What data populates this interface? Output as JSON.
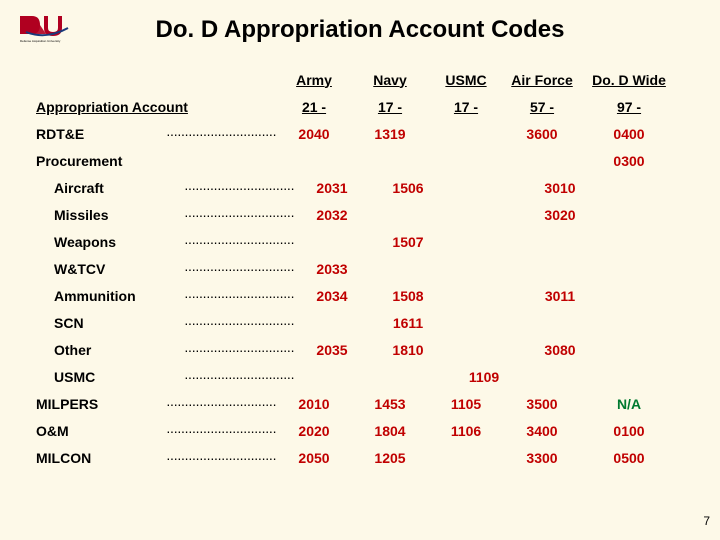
{
  "background_color": "#fdf9e8",
  "logo": {
    "line_color": "#b00020",
    "arc_color": "#1a3a7a",
    "caption": "Defense Acquisition University"
  },
  "title": "Do. D Appropriation Account Codes",
  "dots_pattern": "································",
  "number_color": "#c00000",
  "na_color": "#007a2f",
  "headers": {
    "col1": "Army",
    "col2": "Navy",
    "col3": "USMC",
    "col4": "Air Force",
    "col5": "Do. D Wide"
  },
  "account_row": {
    "label": "Appropriation Account",
    "army": "21 -",
    "navy": "17 -",
    "usmc": "17 -",
    "af": "57 -",
    "dod": "97 -"
  },
  "rows": [
    {
      "label": "RDT&E",
      "dots": true,
      "army": "2040",
      "navy": "1319",
      "usmc": "",
      "af": "3600",
      "dod": "0400"
    },
    {
      "label": "Procurement",
      "dots": false,
      "army": "",
      "navy": "",
      "usmc": "",
      "af": "",
      "dod": "0300"
    },
    {
      "label": "Aircraft",
      "indent": true,
      "dots": true,
      "army": "2031",
      "navy": "1506",
      "usmc": "",
      "af": "3010",
      "dod": ""
    },
    {
      "label": "Missiles",
      "indent": true,
      "dots": true,
      "army": "2032",
      "navy": "",
      "usmc": "",
      "af": "3020",
      "dod": ""
    },
    {
      "label": "Weapons",
      "indent": true,
      "dots": true,
      "army": "",
      "navy": "1507",
      "usmc": "",
      "af": "",
      "dod": ""
    },
    {
      "label": "W&TCV",
      "indent": true,
      "dots": true,
      "army": "2033",
      "navy": "",
      "usmc": "",
      "af": "",
      "dod": ""
    },
    {
      "label": "Ammunition",
      "indent": true,
      "dots": true,
      "army": "2034",
      "navy": "1508",
      "usmc": "",
      "af": "3011",
      "dod": ""
    },
    {
      "label": "SCN",
      "indent": true,
      "dots": true,
      "army": "",
      "navy": "1611",
      "usmc": "",
      "af": "",
      "dod": ""
    },
    {
      "label": "Other",
      "indent": true,
      "dots": true,
      "army": "2035",
      "navy": "1810",
      "usmc": "",
      "af": "3080",
      "dod": ""
    },
    {
      "label": "USMC",
      "indent": true,
      "dots": true,
      "army": "",
      "navy": "",
      "usmc": "1109",
      "af": "",
      "dod": ""
    },
    {
      "label": "MILPERS",
      "dots": true,
      "army": "2010",
      "navy": "1453",
      "usmc": "1105",
      "af": "3500",
      "dod": "N/A",
      "dod_na": true
    },
    {
      "label": "O&M",
      "dots": true,
      "army": "2020",
      "navy": "1804",
      "usmc": "1106",
      "af": "3400",
      "dod": "0100"
    },
    {
      "label": "MILCON",
      "dots": true,
      "army": "2050",
      "navy": "1205",
      "usmc": "",
      "af": "3300",
      "dod": "0500"
    }
  ],
  "slide_number": "7"
}
